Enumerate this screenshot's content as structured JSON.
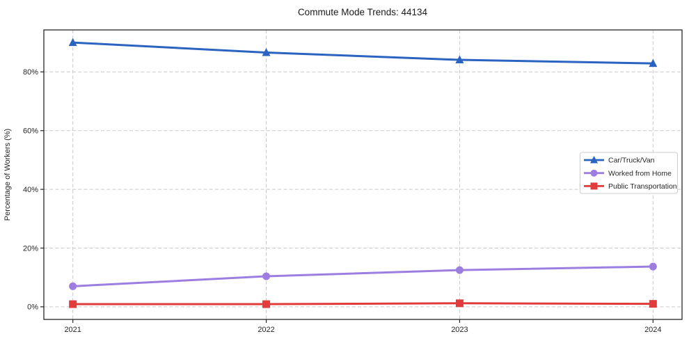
{
  "figure": {
    "title": "Commute Mode Trends: 44134"
  },
  "chart_data": {
    "type": "line",
    "title": "Commute Mode Trends: 44134",
    "xlabel": "",
    "ylabel": "Percentage of Workers (%)",
    "x": [
      2021,
      2022,
      2023,
      2024
    ],
    "x_tick_labels": [
      "2021",
      "2022",
      "2023",
      "2024"
    ],
    "series": [
      {
        "name": "Car/Truck/Van",
        "color": "#2b63c1",
        "marker": "triangle",
        "values": [
          90.0,
          86.6,
          84.1,
          82.9
        ]
      },
      {
        "name": "Worked from Home",
        "color": "#9d7ee0",
        "marker": "circle",
        "values": [
          7.0,
          10.4,
          12.5,
          13.7
        ]
      },
      {
        "name": "Public Transportation",
        "color": "#e23b3b",
        "marker": "square",
        "values": [
          0.9,
          0.9,
          1.2,
          1.0
        ]
      }
    ],
    "yticks": [
      0,
      20,
      40,
      60,
      80
    ],
    "ytick_labels": [
      "0%",
      "20%",
      "40%",
      "60%",
      "80%"
    ],
    "ylim": [
      -4.3,
      94.3
    ],
    "xlim": [
      2020.85,
      2024.15
    ],
    "grid": "dashed",
    "grid_color": "#c9c9c9",
    "axis_color": "#262626",
    "legend": {
      "position": "right-middle",
      "border_color": "#cccccc",
      "background": "#ffffff"
    }
  }
}
